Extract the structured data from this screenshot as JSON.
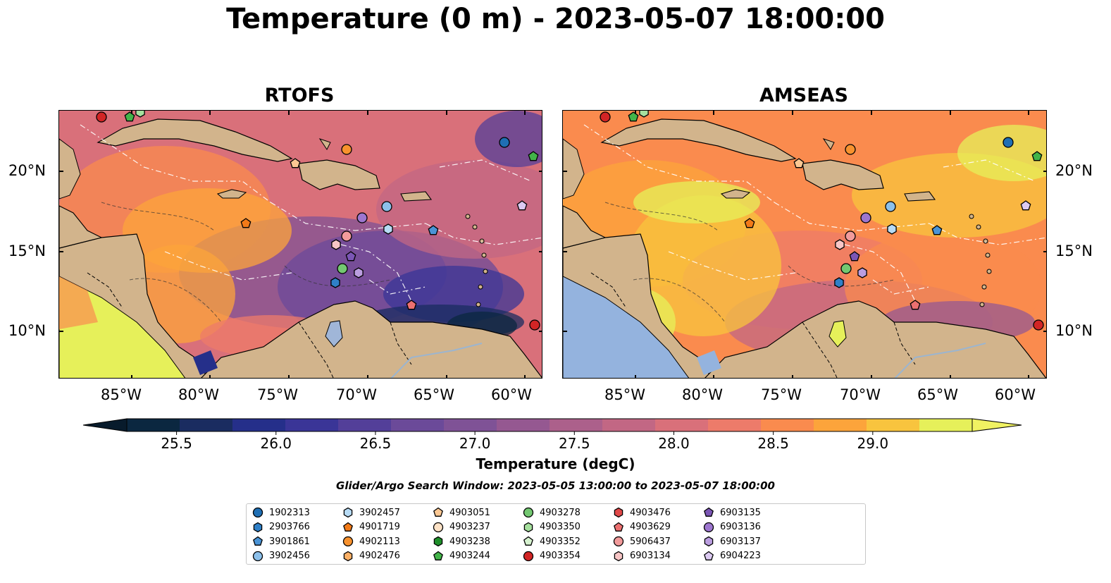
{
  "title": "Temperature (0 m) - 2023-05-07 18:00:00",
  "panels": [
    {
      "name": "RTOFS",
      "variant": "rtofs"
    },
    {
      "name": "AMSEAS",
      "variant": "amseas"
    }
  ],
  "lon_ticks": [
    "85°W",
    "80°W",
    "75°W",
    "70°W",
    "65°W",
    "60°W"
  ],
  "lat_ticks": [
    "20°N",
    "15°N",
    "10°N"
  ],
  "colorbar": {
    "label": "Temperature (degC)",
    "min": 25.25,
    "max": 29.5,
    "step": 0.25,
    "extend": "both",
    "tick_labels": [
      "25.5",
      "26.0",
      "26.5",
      "27.0",
      "27.5",
      "28.0",
      "28.5",
      "29.0"
    ],
    "colors": [
      "#0b2740",
      "#1a2c60",
      "#252f8a",
      "#3a3597",
      "#533f99",
      "#6b4a99",
      "#7f5296",
      "#955891",
      "#ac608b",
      "#c26784",
      "#d9707a",
      "#ed7b6a",
      "#fa8b4e",
      "#fca43b",
      "#f8c43e",
      "#e6f05a"
    ],
    "under_color": "#081b2c",
    "over_color": "#f0f262"
  },
  "search_window": "Glider/Argo Search Window: 2023-05-05 13:00:00 to 2023-05-07 18:00:00",
  "legend": [
    {
      "id": "1902313",
      "marker": "circle",
      "color": "#1f6fb4"
    },
    {
      "id": "2903766",
      "marker": "hexagon",
      "color": "#2f80c8"
    },
    {
      "id": "3901861",
      "marker": "pentagon",
      "color": "#4a94d6"
    },
    {
      "id": "3902456",
      "marker": "circle",
      "color": "#8cc0ea"
    },
    {
      "id": "3902457",
      "marker": "hexagon",
      "color": "#b7dbf5"
    },
    {
      "id": "4901719",
      "marker": "pentagon",
      "color": "#f27a18"
    },
    {
      "id": "4902113",
      "marker": "circle",
      "color": "#f8922e"
    },
    {
      "id": "4902476",
      "marker": "hexagon",
      "color": "#fbb066"
    },
    {
      "id": "4903051",
      "marker": "pentagon",
      "color": "#fcc893"
    },
    {
      "id": "4903237",
      "marker": "circle",
      "color": "#fde2c6"
    },
    {
      "id": "4903238",
      "marker": "hexagon",
      "color": "#1f8f2a"
    },
    {
      "id": "4903244",
      "marker": "pentagon",
      "color": "#42b449"
    },
    {
      "id": "4903278",
      "marker": "circle",
      "color": "#73c871"
    },
    {
      "id": "4903350",
      "marker": "hexagon",
      "color": "#a6e09e"
    },
    {
      "id": "4903352",
      "marker": "pentagon",
      "color": "#d6f2cf"
    },
    {
      "id": "4903354",
      "marker": "circle",
      "color": "#d22525"
    },
    {
      "id": "4903476",
      "marker": "hexagon",
      "color": "#e04848"
    },
    {
      "id": "4903629",
      "marker": "pentagon",
      "color": "#ec7070"
    },
    {
      "id": "5906437",
      "marker": "circle",
      "color": "#f29b9b"
    },
    {
      "id": "6903134",
      "marker": "hexagon",
      "color": "#f8c6c6"
    },
    {
      "id": "6903135",
      "marker": "pentagon",
      "color": "#7b56b5"
    },
    {
      "id": "6903136",
      "marker": "circle",
      "color": "#9d76cf"
    },
    {
      "id": "6903137",
      "marker": "hexagon",
      "color": "#bb9ee0"
    },
    {
      "id": "6904223",
      "marker": "pentagon",
      "color": "#dccaf2"
    }
  ]
}
